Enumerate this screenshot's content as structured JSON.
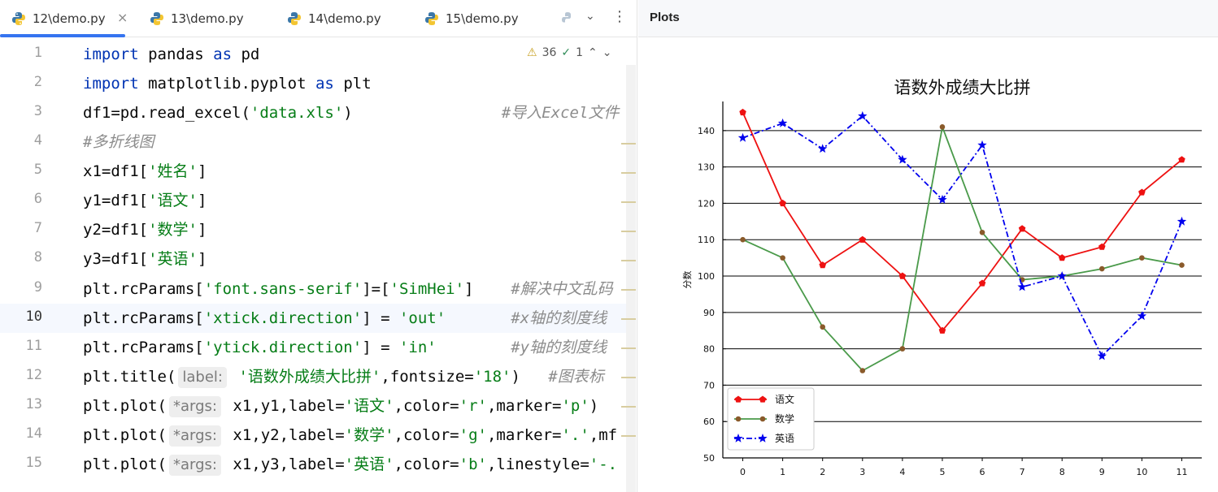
{
  "tabs": [
    {
      "label": "12\\demo.py",
      "active": true
    },
    {
      "label": "13\\demo.py",
      "active": false
    },
    {
      "label": "14\\demo.py",
      "active": false
    },
    {
      "label": "15\\demo.py",
      "active": false
    }
  ],
  "tab_close_glyph": "×",
  "tab_more_glyph": "⋮",
  "inspection": {
    "warnings": "36",
    "ok": "1"
  },
  "current_line": "10",
  "code_lines": [
    {
      "num": "1",
      "text": "import pandas as pd"
    },
    {
      "num": "2",
      "text": "import matplotlib.pyplot as plt"
    },
    {
      "num": "3",
      "text": "df1=pd.read_excel('data.xls')                #导入Excel文件"
    },
    {
      "num": "4",
      "text": "#多折线图"
    },
    {
      "num": "5",
      "text": "x1=df1['姓名']"
    },
    {
      "num": "6",
      "text": "y1=df1['语文']"
    },
    {
      "num": "7",
      "text": "y2=df1['数学']"
    },
    {
      "num": "8",
      "text": "y3=df1['英语']"
    },
    {
      "num": "9",
      "text": "plt.rcParams['font.sans-serif']=['SimHei']    #解决中文乱码"
    },
    {
      "num": "10",
      "text": "plt.rcParams['xtick.direction'] = 'out'       #x轴的刻度线"
    },
    {
      "num": "11",
      "text": "plt.rcParams['ytick.direction'] = 'in'        #y轴的刻度线"
    },
    {
      "num": "12",
      "text": "plt.title( label: '语数外成绩大比拼',fontsize='18')   #图表标"
    },
    {
      "num": "13",
      "text": "plt.plot( *args: x1,y1,label='语文',color='r',marker='p')"
    },
    {
      "num": "14",
      "text": "plt.plot( *args: x1,y2,label='数学',color='g',marker='.',mf"
    },
    {
      "num": "15",
      "text": "plt.plot( *args: x1,y3,label='英语',color='b',linestyle='-."
    }
  ],
  "plots_panel": {
    "title": "Plots"
  },
  "chart_data": {
    "type": "line",
    "title": "语数外成绩大比拼",
    "xlabel": "",
    "ylabel": "分数",
    "x": [
      0,
      1,
      2,
      3,
      4,
      5,
      6,
      7,
      8,
      9,
      10,
      11
    ],
    "xticks": [
      "0",
      "1",
      "2",
      "3",
      "4",
      "5",
      "6",
      "7",
      "8",
      "9",
      "10",
      "11"
    ],
    "ylim": [
      50,
      148
    ],
    "yticks": [
      "50",
      "60",
      "70",
      "80",
      "90",
      "100",
      "110",
      "120",
      "130",
      "140"
    ],
    "grid": "horizontal",
    "legend_position": "bottom-left",
    "series": [
      {
        "name": "语文",
        "color": "#ee1111",
        "linestyle": "solid",
        "marker": "pentagon",
        "values": [
          145,
          120,
          103,
          110,
          100,
          85,
          98,
          113,
          105,
          108,
          123,
          132
        ]
      },
      {
        "name": "数学",
        "color": "#4a9a4a",
        "linestyle": "solid",
        "marker": "dot",
        "values": [
          110,
          105,
          86,
          74,
          80,
          141,
          112,
          99,
          100,
          102,
          105,
          103
        ]
      },
      {
        "name": "英语",
        "color": "#0000ee",
        "linestyle": "dashdot",
        "marker": "star",
        "values": [
          138,
          142,
          135,
          144,
          132,
          121,
          136,
          97,
          100,
          78,
          89,
          115
        ]
      }
    ]
  }
}
